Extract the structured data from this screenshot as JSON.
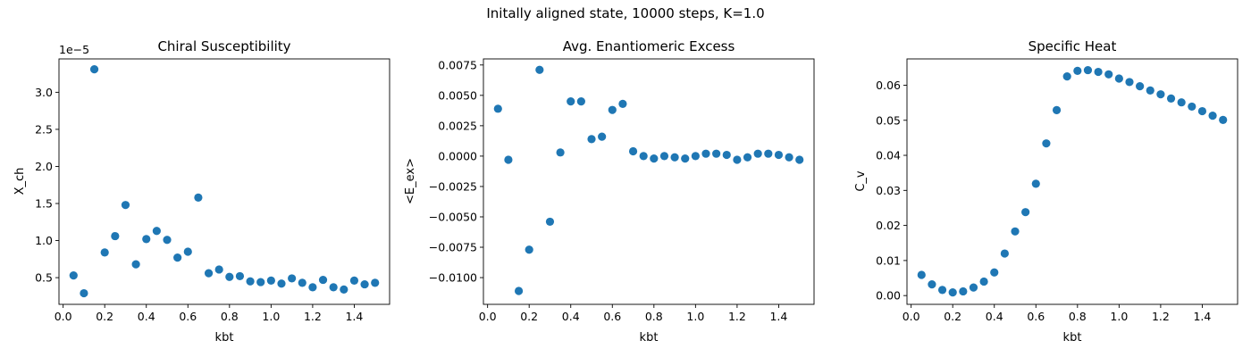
{
  "figure": {
    "suptitle": "Initally aligned state, 10000 steps, K=1.0"
  },
  "style": {
    "marker_color": "#1f77b4"
  },
  "chart_data": [
    {
      "type": "scatter",
      "title": "Chiral Susceptibility",
      "xlabel": "kbt",
      "ylabel": "X_ch",
      "offset_text": "1e−5",
      "xlim": [
        -0.02,
        1.57
      ],
      "ylim": [
        0.14,
        3.45
      ],
      "xticks": [
        0.0,
        0.2,
        0.4,
        0.6,
        0.8,
        1.0,
        1.2,
        1.4
      ],
      "xtick_labels": [
        "0.0",
        "0.2",
        "0.4",
        "0.6",
        "0.8",
        "1.0",
        "1.2",
        "1.4"
      ],
      "yticks": [
        0.5,
        1.0,
        1.5,
        2.0,
        2.5,
        3.0
      ],
      "ytick_labels": [
        "0.5",
        "1.0",
        "1.5",
        "2.0",
        "2.5",
        "3.0"
      ],
      "x": [
        0.05,
        0.1,
        0.15,
        0.2,
        0.25,
        0.3,
        0.35,
        0.4,
        0.45,
        0.5,
        0.55,
        0.6,
        0.65,
        0.7,
        0.75,
        0.8,
        0.85,
        0.9,
        0.95,
        1.0,
        1.05,
        1.1,
        1.15,
        1.2,
        1.25,
        1.3,
        1.35,
        1.4,
        1.45,
        1.5
      ],
      "y": [
        0.53,
        0.29,
        3.31,
        0.84,
        1.06,
        1.48,
        0.68,
        1.02,
        1.13,
        1.01,
        0.77,
        0.85,
        1.58,
        0.56,
        0.61,
        0.51,
        0.52,
        0.45,
        0.44,
        0.46,
        0.42,
        0.49,
        0.43,
        0.37,
        0.47,
        0.37,
        0.34,
        0.46,
        0.41,
        0.43
      ]
    },
    {
      "type": "scatter",
      "title": "Avg. Enantiomeric Excess",
      "xlabel": "kbt",
      "ylabel": "<E_ex>",
      "xlim": [
        -0.02,
        1.57
      ],
      "ylim": [
        -0.0122,
        0.008
      ],
      "xticks": [
        0.0,
        0.2,
        0.4,
        0.6,
        0.8,
        1.0,
        1.2,
        1.4
      ],
      "xtick_labels": [
        "0.0",
        "0.2",
        "0.4",
        "0.6",
        "0.8",
        "1.0",
        "1.2",
        "1.4"
      ],
      "yticks": [
        -0.01,
        -0.0075,
        -0.005,
        -0.0025,
        0.0,
        0.0025,
        0.005,
        0.0075
      ],
      "ytick_labels": [
        "−0.0100",
        "−0.0075",
        "−0.0050",
        "−0.0025",
        "0.0000",
        "0.0025",
        "0.0050",
        "0.0075"
      ],
      "x": [
        0.05,
        0.1,
        0.15,
        0.2,
        0.25,
        0.3,
        0.35,
        0.4,
        0.45,
        0.5,
        0.55,
        0.6,
        0.65,
        0.7,
        0.75,
        0.8,
        0.85,
        0.9,
        0.95,
        1.0,
        1.05,
        1.1,
        1.15,
        1.2,
        1.25,
        1.3,
        1.35,
        1.4,
        1.45,
        1.5
      ],
      "y": [
        0.0039,
        -0.0003,
        -0.0111,
        -0.0077,
        0.0071,
        -0.0054,
        0.0003,
        0.0045,
        0.0045,
        0.0014,
        0.0016,
        0.0038,
        0.0043,
        0.0004,
        0.0,
        -0.0002,
        0.0,
        -0.0001,
        -0.0002,
        0.0,
        0.0002,
        0.0002,
        0.0001,
        -0.0003,
        -0.0001,
        0.0002,
        0.0002,
        0.0001,
        -0.0001,
        -0.0003
      ]
    },
    {
      "type": "scatter",
      "title": "Specific Heat",
      "xlabel": "kbt",
      "ylabel": "C_v",
      "xlim": [
        -0.02,
        1.57
      ],
      "ylim": [
        -0.0025,
        0.0675
      ],
      "xticks": [
        0.0,
        0.2,
        0.4,
        0.6,
        0.8,
        1.0,
        1.2,
        1.4
      ],
      "xtick_labels": [
        "0.0",
        "0.2",
        "0.4",
        "0.6",
        "0.8",
        "1.0",
        "1.2",
        "1.4"
      ],
      "yticks": [
        0.0,
        0.01,
        0.02,
        0.03,
        0.04,
        0.05,
        0.06
      ],
      "ytick_labels": [
        "0.00",
        "0.01",
        "0.02",
        "0.03",
        "0.04",
        "0.05",
        "0.06"
      ],
      "x": [
        0.05,
        0.1,
        0.15,
        0.2,
        0.25,
        0.3,
        0.35,
        0.4,
        0.45,
        0.5,
        0.55,
        0.6,
        0.65,
        0.7,
        0.75,
        0.8,
        0.85,
        0.9,
        0.95,
        1.0,
        1.05,
        1.1,
        1.15,
        1.2,
        1.25,
        1.3,
        1.35,
        1.4,
        1.45,
        1.5
      ],
      "y": [
        0.0059,
        0.0032,
        0.0016,
        0.0009,
        0.0012,
        0.0023,
        0.004,
        0.0066,
        0.012,
        0.0183,
        0.0238,
        0.0319,
        0.0434,
        0.0529,
        0.0625,
        0.0641,
        0.0643,
        0.0638,
        0.0631,
        0.0619,
        0.0609,
        0.0597,
        0.0585,
        0.0574,
        0.0562,
        0.0551,
        0.0539,
        0.0526,
        0.0513,
        0.0501
      ]
    }
  ]
}
